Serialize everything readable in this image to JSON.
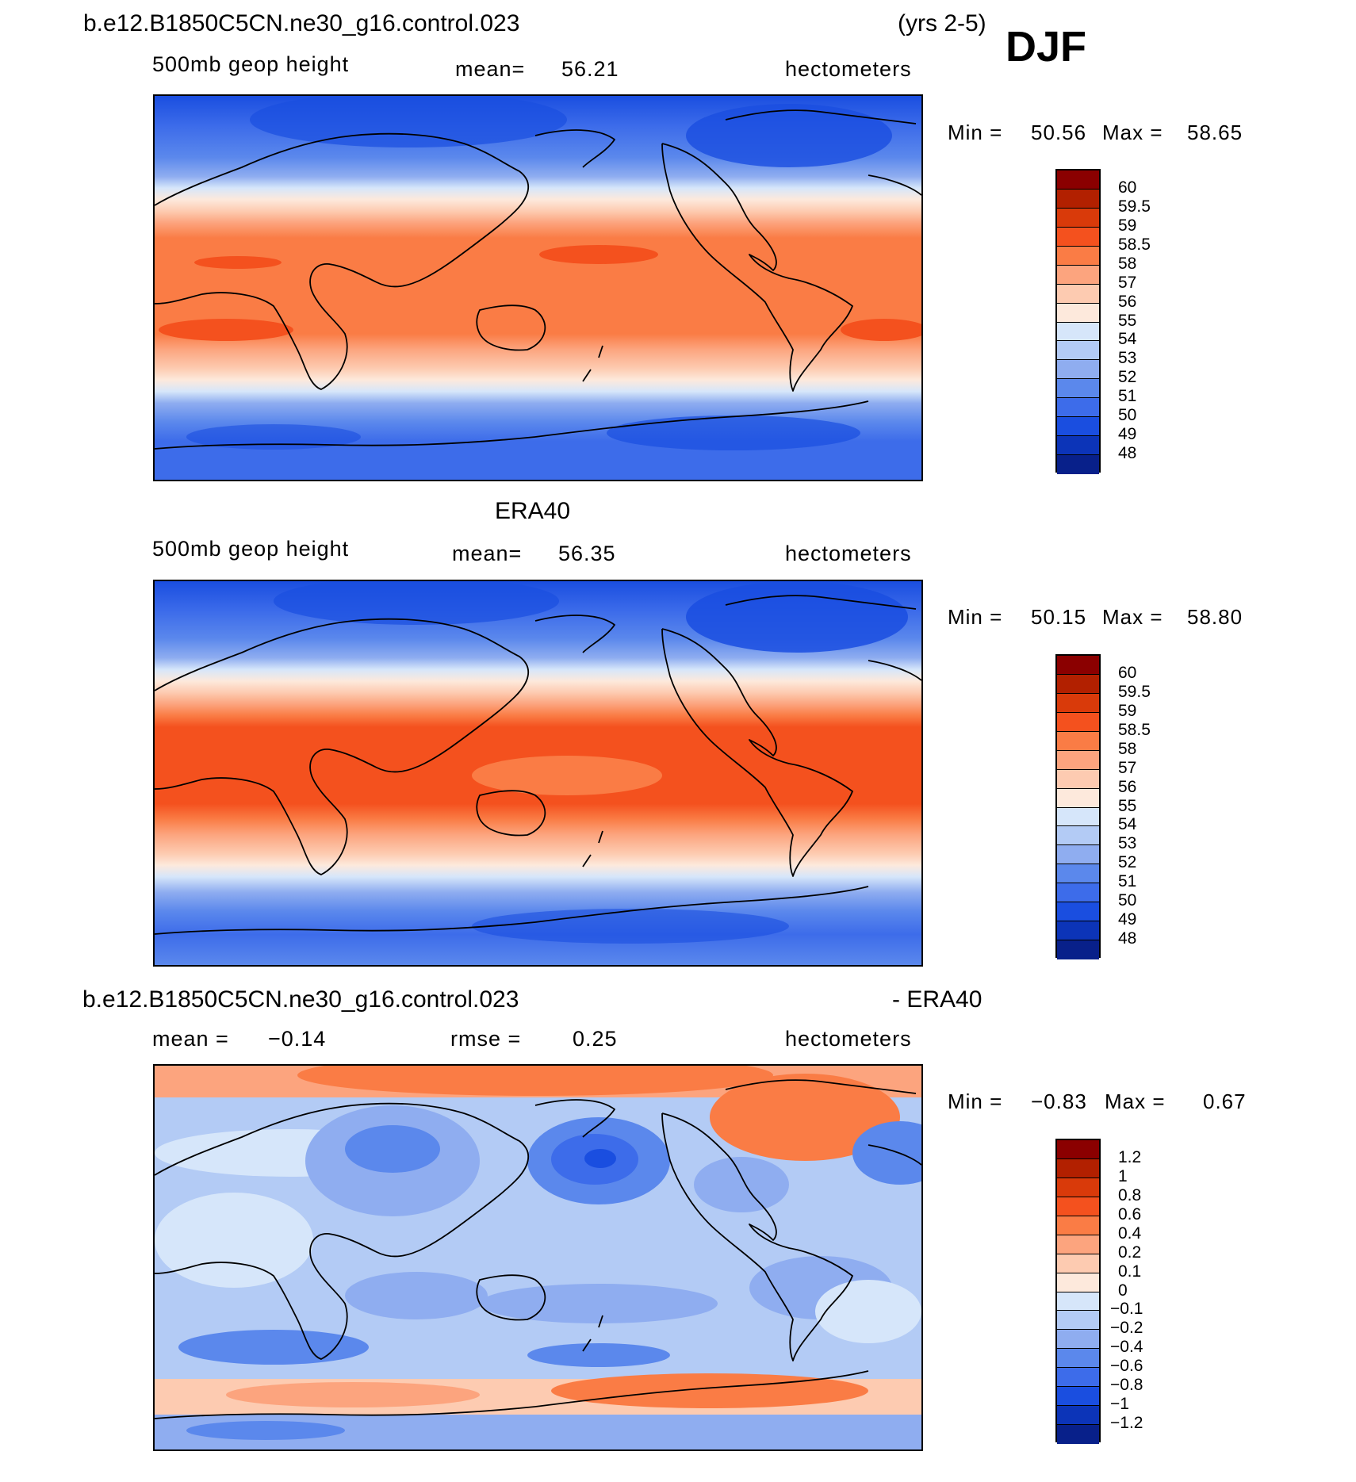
{
  "season": "DJF",
  "years": "(yrs 2-5)",
  "panels": [
    {
      "id": "model",
      "title": "b.e12.B1850C5CN.ne30_g16.control.023",
      "variable": "500mb  geop  height",
      "stat_label": "mean=",
      "stat_value": "56.21",
      "units": "hectometers",
      "min_label": "Min =",
      "min_value": "50.56",
      "max_label": "Max =",
      "max_value": "58.65"
    },
    {
      "id": "obs",
      "title": "ERA40",
      "variable": "500mb  geop  height",
      "stat_label": "mean=",
      "stat_value": "56.35",
      "units": "hectometers",
      "min_label": "Min =",
      "min_value": "50.15",
      "max_label": "Max =",
      "max_value": "58.80"
    },
    {
      "id": "diff",
      "title": "b.e12.B1850C5CN.ne30_g16.control.023",
      "title_suffix": "- ERA40",
      "stat_label": "mean =",
      "stat_value": "−0.14",
      "rmse_label": "rmse =",
      "rmse_value": "0.25",
      "units": "hectometers",
      "min_label": "Min =",
      "min_value": "−0.83",
      "max_label": "Max =",
      "max_value": "0.67"
    }
  ],
  "colorbars": {
    "height": {
      "levels": [
        "60",
        "59.5",
        "59",
        "58.5",
        "58",
        "57",
        "56",
        "55",
        "54",
        "53",
        "52",
        "51",
        "50",
        "49",
        "48"
      ],
      "colors": [
        "#8b0000",
        "#b22000",
        "#d93a0a",
        "#f4511e",
        "#fa7c45",
        "#fca47e",
        "#fdcbb1",
        "#fde9dc",
        "#d6e6fa",
        "#b3cbf5",
        "#8fadf0",
        "#5b88ec",
        "#3d6cea",
        "#1a4ee0",
        "#0c34b8",
        "#08208a"
      ]
    },
    "diff": {
      "levels": [
        "1.2",
        "1",
        "0.8",
        "0.6",
        "0.4",
        "0.2",
        "0.1",
        "0",
        "−0.1",
        "−0.2",
        "−0.4",
        "−0.6",
        "−0.8",
        "−1",
        "−1.2"
      ],
      "colors": [
        "#8b0000",
        "#b22000",
        "#d93a0a",
        "#f4511e",
        "#fa7c45",
        "#fca47e",
        "#fdcbb1",
        "#fde9dc",
        "#d6e6fa",
        "#b3cbf5",
        "#8fadf0",
        "#5b88ec",
        "#3d6cea",
        "#1a4ee0",
        "#0c34b8",
        "#08208a"
      ]
    }
  },
  "chart_data": [
    {
      "type": "heatmap",
      "title": "b.e12.B1850C5CN.ne30_g16.control.023",
      "subtitle": "500mb geop height",
      "units": "hectometers",
      "mean": 56.21,
      "min": 50.56,
      "max": 58.65,
      "contour_levels": [
        48,
        49,
        50,
        51,
        52,
        53,
        54,
        55,
        56,
        57,
        58,
        58.5,
        59,
        59.5,
        60
      ],
      "zonal_profile_lat": [
        90,
        80,
        70,
        60,
        50,
        40,
        30,
        20,
        10,
        0,
        -10,
        -20,
        -30,
        -40,
        -50,
        -60,
        -70,
        -80,
        -90
      ],
      "zonal_profile_value": [
        50.8,
        51.2,
        51.9,
        52.8,
        54.2,
        55.9,
        57.5,
        58.2,
        58.3,
        58.3,
        58.4,
        58.3,
        57.5,
        55.7,
        53.6,
        51.8,
        51.0,
        50.9,
        50.7
      ]
    },
    {
      "type": "heatmap",
      "title": "ERA40",
      "subtitle": "500mb geop height",
      "units": "hectometers",
      "mean": 56.35,
      "min": 50.15,
      "max": 58.8,
      "contour_levels": [
        48,
        49,
        50,
        51,
        52,
        53,
        54,
        55,
        56,
        57,
        58,
        58.5,
        59,
        59.5,
        60
      ],
      "zonal_profile_lat": [
        90,
        80,
        70,
        60,
        50,
        40,
        30,
        20,
        10,
        0,
        -10,
        -20,
        -30,
        -40,
        -50,
        -60,
        -70,
        -80,
        -90
      ],
      "zonal_profile_value": [
        50.6,
        51.0,
        51.8,
        52.8,
        54.3,
        56.0,
        57.6,
        58.4,
        58.7,
        58.7,
        58.7,
        58.5,
        57.6,
        55.8,
        53.8,
        51.9,
        51.0,
        50.9,
        50.6
      ]
    },
    {
      "type": "heatmap",
      "title": "b.e12.B1850C5CN.ne30_g16.control.023 - ERA40",
      "units": "hectometers",
      "mean": -0.14,
      "rmse": 0.25,
      "min": -0.83,
      "max": 0.67,
      "contour_levels": [
        -1.2,
        -1,
        -0.8,
        -0.6,
        -0.4,
        -0.2,
        -0.1,
        0,
        0.1,
        0.2,
        0.4,
        0.6,
        0.8,
        1,
        1.2
      ]
    }
  ]
}
